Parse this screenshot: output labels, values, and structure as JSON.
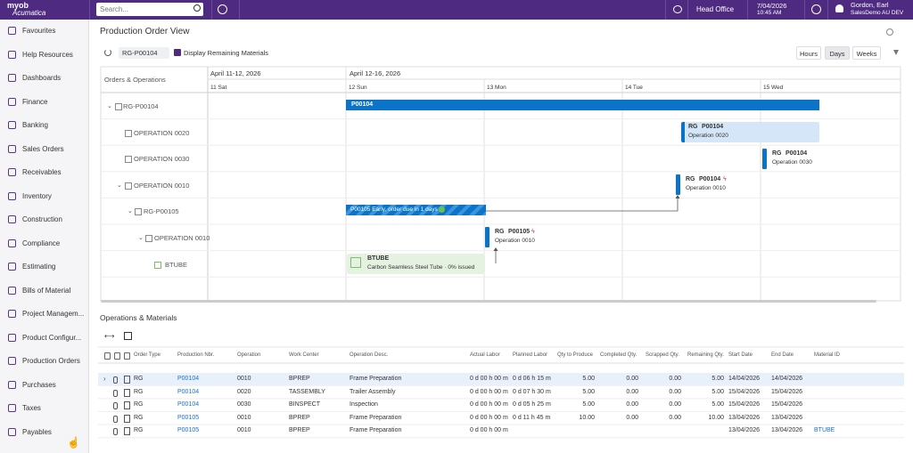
{
  "topbar": {
    "logo_top": "myob",
    "logo_bottom": "Acumatica",
    "search_placeholder": "Search...",
    "branch": "Head Office",
    "date": "7/04/2026",
    "time": "10:45 AM",
    "user": "Gordon, Earl",
    "company": "SalesDemo AU DEV"
  },
  "sidebar": {
    "items": [
      "Favourites",
      "Help Resources",
      "Dashboards",
      "Finance",
      "Banking",
      "Sales Orders",
      "Receivables",
      "Inventory",
      "Construction",
      "Compliance",
      "Estimating",
      "Bills of Material",
      "Project Managem...",
      "Product Configur...",
      "Production Orders",
      "Purchases",
      "Taxes",
      "Payables"
    ]
  },
  "page": {
    "title": "Production Order View",
    "order": "RG-P00104",
    "display_remaining": "Display Remaining Materials",
    "scale_buttons": [
      "Hours",
      "Days",
      "Weeks"
    ]
  },
  "gantt": {
    "tree_header": "Orders & Operations",
    "periods": [
      "April 11-12, 2026",
      "April 12-16, 2026"
    ],
    "days": [
      "11 Sat",
      "12 Sun",
      "13 Mon",
      "14 Tue",
      "15 Wed"
    ],
    "rows": [
      "RG-P00104",
      "OPERATION 0020",
      "OPERATION 0030",
      "OPERATION 0010",
      "RG-P00105",
      "OPERATION 0010",
      "BTUBE"
    ],
    "bars": [
      {
        "title": "P00104"
      },
      {
        "order_type": "RG",
        "order": "P00104",
        "operation": "Operation 0020"
      },
      {
        "order_type": "RG",
        "order": "P00104",
        "operation": "Operation 0030"
      },
      {
        "order_type": "RG",
        "order": "P00104",
        "operation": "Operation 0010"
      },
      {
        "title": "P00105 Early, order due in 1 days"
      },
      {
        "order_type": "RG",
        "order": "P00105",
        "operation": "Operation 0010"
      },
      {
        "title": "BTUBE",
        "operation": "Carbon Seamless Steel Tube · 0% issued"
      }
    ]
  },
  "operations": {
    "title": "Operations & Materials",
    "columns": [
      "Order Type",
      "Production Nbr.",
      "Operation",
      "Work Center",
      "Operation Desc.",
      "Actual Labor",
      "Planned Labor",
      "Qty to Produce",
      "Completed Qty.",
      "Scrapped Qty.",
      "Remaining Qty.",
      "Start Date",
      "End Date",
      "Material ID"
    ],
    "rows": [
      [
        "RG",
        "P00104",
        "0010",
        "BPREP",
        "Frame Preparation",
        "0 d 00 h 00 m",
        "0 d 06 h 15 m",
        "5.00",
        "0.00",
        "0.00",
        "5.00",
        "14/04/2026",
        "14/04/2026",
        null
      ],
      [
        "RG",
        "P00104",
        "0020",
        "TASSEMBLY",
        "Trailer Assembly",
        "0 d 00 h 00 m",
        "0 d 07 h 30 m",
        "5.00",
        "0.00",
        "0.00",
        "5.00",
        "15/04/2026",
        "15/04/2026",
        null
      ],
      [
        "RG",
        "P00104",
        "0030",
        "BINSPECT",
        "Inspection",
        "0 d 00 h 00 m",
        "0 d 05 h 25 m",
        "5.00",
        "0.00",
        "0.00",
        "5.00",
        "15/04/2026",
        "15/04/2026",
        null
      ],
      [
        "RG",
        "P00105",
        "0010",
        "BPREP",
        "Frame Preparation",
        "0 d 00 h 00 m",
        "0 d 11 h 45 m",
        "10.00",
        "0.00",
        "0.00",
        "10.00",
        "13/04/2026",
        "13/04/2026",
        null
      ],
      [
        "RG",
        "P00105",
        "0010",
        "BPREP",
        "Frame Preparation",
        "0 d 00 h 00 m",
        null,
        null,
        null,
        null,
        null,
        "13/04/2026",
        "13/04/2026",
        "BTUBE"
      ]
    ]
  }
}
